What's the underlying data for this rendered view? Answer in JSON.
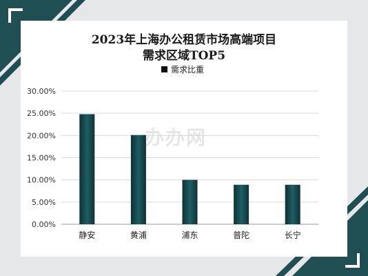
{
  "chart_data": {
    "type": "bar",
    "title_line1": "2023年上海办公租赁市场高端项目",
    "title_line2": "需求区域TOP5",
    "legend": "需求比重",
    "categories": [
      "静安",
      "黄浦",
      "浦东",
      "普陀",
      "长宁"
    ],
    "series": [
      {
        "name": "需求比重",
        "values": [
          24.8,
          20.1,
          10.0,
          8.9,
          8.9
        ]
      }
    ],
    "yticks": [
      "0.00%",
      "5.00%",
      "10.00%",
      "15.00%",
      "20.00%",
      "25.00%",
      "30.00%"
    ],
    "ylim": [
      0,
      30
    ],
    "grid": true,
    "bar_color": "#1d5e62"
  },
  "watermark": "办办网",
  "frame_color": "#24585d"
}
